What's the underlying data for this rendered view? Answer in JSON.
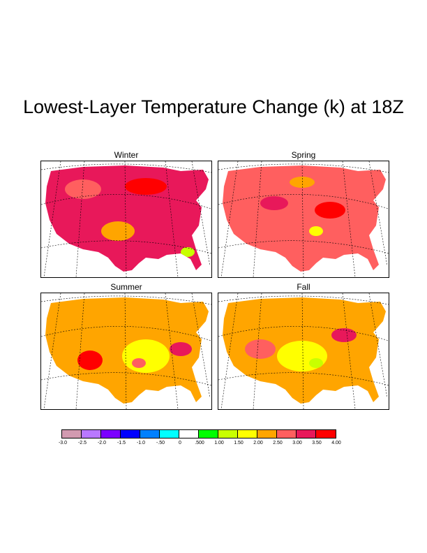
{
  "title": "Lowest-Layer Temperature Change (k) at 18Z",
  "panels": [
    {
      "label": "Winter",
      "base": "#e8185a",
      "accent": "#ff5f5f",
      "warm": "#ff0000",
      "cool": "#ffa500",
      "extra": "#c8ff00"
    },
    {
      "label": "Spring",
      "base": "#ff5f5f",
      "accent": "#e8185a",
      "warm": "#ff0000",
      "cool": "#ffa500",
      "extra": "#ffff00"
    },
    {
      "label": "Summer",
      "base": "#ffa500",
      "accent": "#ffff00",
      "warm": "#ff0000",
      "cool": "#e8185a",
      "extra": "#ff5f5f"
    },
    {
      "label": "Fall",
      "base": "#ffa500",
      "accent": "#ffff00",
      "warm": "#ff5f5f",
      "cool": "#e8185a",
      "extra": "#c8ff00"
    }
  ],
  "legend": {
    "colors": [
      "#d29ab0",
      "#b978ff",
      "#7b00ff",
      "#0000ff",
      "#0080ff",
      "#00ffff",
      "#ffffff",
      "#00ff00",
      "#c8ff00",
      "#ffff00",
      "#ffa500",
      "#ff5f5f",
      "#e8185a",
      "#ff0000"
    ],
    "labels": [
      "-3.0",
      "-2.5",
      "-2.0",
      "-1.5",
      "-1.0",
      "-.50",
      "0",
      ".500",
      "1.00",
      "1.50",
      "2.00",
      "2.50",
      "3.00",
      "3.50",
      "4.00"
    ]
  }
}
